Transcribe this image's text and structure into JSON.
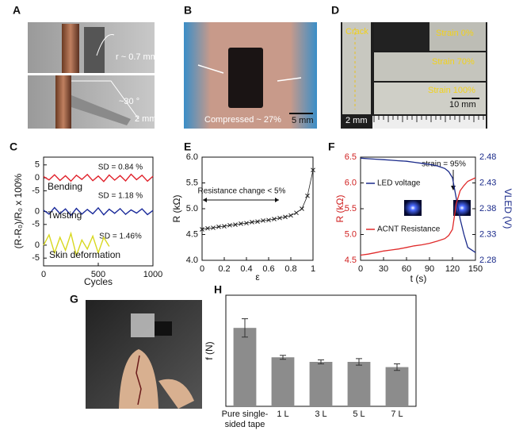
{
  "panel_labels": [
    "A",
    "B",
    "C",
    "D",
    "E",
    "F",
    "G",
    "H"
  ],
  "photo_a": {
    "radius": "r ~ 0.7 mm",
    "angle": "~30 °",
    "scale": "2 mm"
  },
  "photo_b": {
    "caption": "Compressed ~ 27%",
    "scale": "5 mm"
  },
  "photo_d": {
    "crack": "Crack",
    "strain_0": "Strain 0%",
    "strain_70": "Strain 70%",
    "strain_100": "Strain 100%",
    "scale_right": "10 mm",
    "scale_left": "2 mm"
  },
  "chart_data": [
    {
      "type": "line",
      "xlabel": "Cycles",
      "ylabel": "(R-R₀)/R₀ x 100%",
      "x": [
        0,
        50,
        100,
        150,
        200,
        250,
        300,
        350,
        400,
        450,
        500,
        550,
        600,
        650,
        700,
        750,
        800,
        850,
        900,
        950,
        1000
      ],
      "xlim": [
        0,
        1000
      ],
      "xticks": [
        0,
        500,
        1000
      ],
      "ylim": [
        -34,
        8
      ],
      "yticks": [
        5,
        0,
        -5,
        {
          "value": -13,
          "label": "0"
        },
        {
          "value": -18,
          "label": "-5"
        },
        {
          "value": -26,
          "label": "0"
        },
        {
          "value": -31,
          "label": "-5"
        }
      ],
      "series": [
        {
          "name": "Bending",
          "color": "#e0202a",
          "values": [
            0.5,
            -0.8,
            1.2,
            -1,
            0.8,
            -1.3,
            1,
            -0.6,
            1.3,
            -1.1,
            0.7,
            -1.4,
            1.1,
            -0.9,
            0.9,
            -1.2,
            1.4,
            -0.7,
            1,
            -1.3,
            0.6
          ]
        },
        {
          "name": "Twisting",
          "color": "#1a2a9a",
          "values": [
            -12.5,
            -14,
            -11.5,
            -13.8,
            -12,
            -14.5,
            -11.8,
            -14,
            -12.2,
            -13.9,
            -11.6,
            -14.3,
            -12.1,
            -13.7,
            -11.9,
            -14.1,
            -12.4,
            -13.6,
            -12,
            -14.2,
            -12.6
          ]
        },
        {
          "name": "Skin deformation",
          "color": "#d8d820",
          "values": [
            -26,
            -22,
            -29,
            -23,
            -28,
            -21.5,
            -30,
            -24,
            -27.5,
            -22.5,
            -29,
            -23,
            -26.5,
            null,
            null,
            null,
            null,
            null,
            null,
            null,
            null
          ]
        }
      ],
      "annotations": [
        "SD = 0.84 %",
        "SD = 1.18 %",
        "SD = 1.46%"
      ]
    },
    {
      "type": "scatter",
      "xlabel": "ε",
      "ylabel": "R (kΩ)",
      "color": "#222222",
      "x": [
        0,
        0.05,
        0.1,
        0.15,
        0.2,
        0.25,
        0.3,
        0.35,
        0.4,
        0.45,
        0.5,
        0.55,
        0.6,
        0.65,
        0.7,
        0.75,
        0.8,
        0.85,
        0.9,
        0.95,
        1
      ],
      "values": [
        4.6,
        4.62,
        4.63,
        4.65,
        4.66,
        4.68,
        4.69,
        4.71,
        4.72,
        4.74,
        4.75,
        4.77,
        4.78,
        4.8,
        4.82,
        4.84,
        4.87,
        4.92,
        5.0,
        5.25,
        5.75
      ],
      "xlim": [
        0,
        1
      ],
      "xticks": [
        0,
        0.2,
        0.4,
        0.6,
        0.8,
        1
      ],
      "ylim": [
        4,
        6
      ],
      "yticks": [
        {
          "value": 4,
          "label": "4.0"
        },
        4.5,
        {
          "value": 5,
          "label": "5.0"
        },
        5.5,
        {
          "value": 6,
          "label": "6.0"
        }
      ],
      "annotations": [
        "Resistance change < 5%"
      ]
    },
    {
      "type": "line",
      "xlabel": "t (s)",
      "ylabel": "R (kΩ)",
      "y2label": "VLED (V)",
      "ycolor": "#d02020",
      "y2color": "#1a2a8a",
      "x": [
        0,
        10,
        20,
        30,
        40,
        50,
        60,
        70,
        80,
        90,
        100,
        110,
        115,
        120,
        125,
        130,
        135,
        140,
        150
      ],
      "xlim": [
        0,
        150
      ],
      "xticks": [
        0,
        30,
        60,
        90,
        120,
        150
      ],
      "ylim": [
        4.5,
        6.5
      ],
      "yticks": [
        4.5,
        {
          "value": 5,
          "label": "5.0"
        },
        5.5,
        {
          "value": 6,
          "label": "6.0"
        },
        6.5
      ],
      "y2lim": [
        2.28,
        2.48
      ],
      "y2ticks": [
        2.28,
        2.33,
        2.38,
        2.43,
        2.48
      ],
      "series": [
        {
          "name": "LED voltage",
          "color": "#1a2a8a",
          "axis": "y2",
          "values": [
            2.478,
            2.477,
            2.476,
            2.475,
            2.474,
            2.473,
            2.472,
            2.47,
            2.468,
            2.466,
            2.463,
            2.458,
            2.452,
            2.44,
            2.4,
            2.36,
            2.33,
            2.305,
            2.295
          ]
        },
        {
          "name": "ACNT Resistance",
          "color": "#e02a2a",
          "values": [
            4.6,
            4.62,
            4.65,
            4.68,
            4.7,
            4.72,
            4.75,
            4.78,
            4.8,
            4.83,
            4.87,
            4.92,
            4.98,
            5.1,
            5.6,
            5.85,
            5.95,
            6.03,
            6.1
          ]
        }
      ],
      "annotations": [
        "strain = 95%"
      ]
    },
    {
      "type": "bar",
      "ylabel": "f (N)",
      "color": "#8c8c8c",
      "categories": [
        "Pure single-sided tape",
        "1 L",
        "3 L",
        "5 L",
        "7 L"
      ],
      "values": [
        1.2,
        0.75,
        0.68,
        0.68,
        0.6
      ],
      "errors": [
        0.14,
        0.03,
        0.03,
        0.05,
        0.05
      ],
      "ylim": [
        0,
        1.7
      ]
    }
  ]
}
